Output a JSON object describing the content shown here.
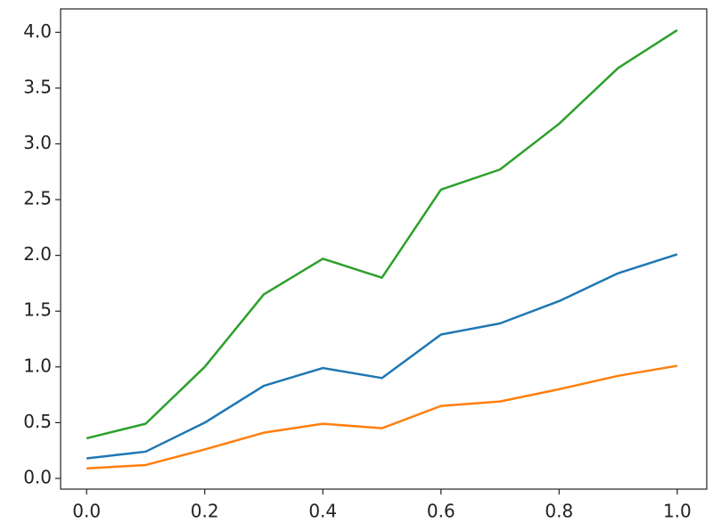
{
  "chart_data": {
    "type": "line",
    "x": [
      0,
      0.1,
      0.2,
      0.3,
      0.4,
      0.5,
      0.6,
      0.7,
      0.8,
      0.9,
      1
    ],
    "series": [
      {
        "color": "#1f77b4",
        "values": [
          0.18,
          0.24,
          0.5,
          0.83,
          0.99,
          0.9,
          1.29,
          1.39,
          1.59,
          1.84,
          2.01
        ]
      },
      {
        "color": "#ff7f0e",
        "values": [
          0.09,
          0.12,
          0.26,
          0.41,
          0.49,
          0.45,
          0.65,
          0.69,
          0.8,
          0.92,
          1.01
        ]
      },
      {
        "color": "#2ca02c",
        "values": [
          0.36,
          0.49,
          1.0,
          1.65,
          1.97,
          1.8,
          2.59,
          2.77,
          3.18,
          3.68,
          4.02
        ]
      }
    ],
    "xlim": [
      -0.044,
      1.05
    ],
    "ylim": [
      -0.096,
      4.21
    ],
    "xticks": [
      {
        "value": 0,
        "label": "0.0"
      },
      0.2,
      0.4,
      0.6,
      0.8,
      {
        "value": 1,
        "label": "1.0"
      }
    ],
    "yticks": [
      {
        "value": 0,
        "label": "0.0"
      },
      0.5,
      {
        "value": 1,
        "label": "1.0"
      },
      1.5,
      {
        "value": 2,
        "label": "2.0"
      },
      2.5,
      {
        "value": 3,
        "label": "3.0"
      },
      3.5,
      {
        "value": 4,
        "label": "4.0"
      }
    ],
    "grid": false
  }
}
